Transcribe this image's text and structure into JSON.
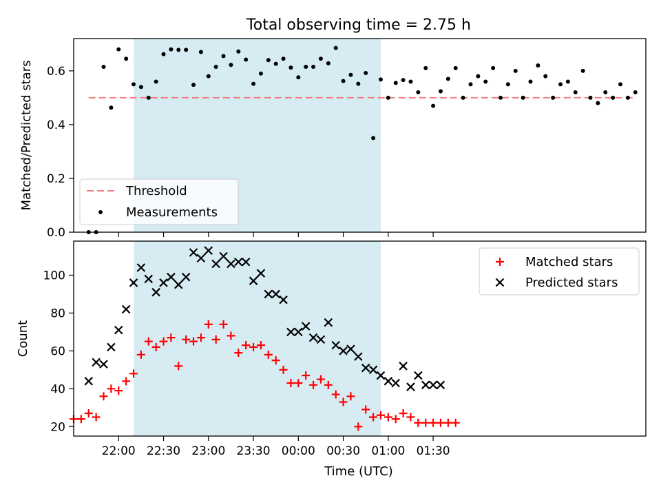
{
  "chart_data": [
    {
      "type": "scatter",
      "title": "Total observing time = 2.75 h",
      "xlabel": "",
      "ylabel": "Matched/Predicted stars",
      "ylim": [
        0,
        0.72
      ],
      "y_ticks": [
        "0.0",
        "0.2",
        "0.4",
        "0.6"
      ],
      "x_range_minutes": [
        1290,
        1672
      ],
      "shaded_interval_minutes": [
        1330,
        1495
      ],
      "threshold": {
        "name": "Threshold",
        "value": 0.5,
        "x": [
          1300,
          1665
        ],
        "color": "#f08080"
      },
      "series": [
        {
          "name": "Measurements",
          "color": "#000000",
          "x": [
            1300,
            1305,
            1310,
            1315,
            1320,
            1325,
            1330,
            1335,
            1340,
            1345,
            1350,
            1355,
            1360,
            1365,
            1370,
            1375,
            1380,
            1385,
            1390,
            1395,
            1400,
            1405,
            1410,
            1415,
            1420,
            1425,
            1430,
            1435,
            1440,
            1445,
            1450,
            1455,
            1460,
            1465,
            1470,
            1475,
            1480,
            1485,
            1490,
            1495,
            1500,
            1505,
            1510,
            1515,
            1520,
            1525,
            1530,
            1535,
            1540,
            1545,
            1550,
            1555,
            1560,
            1565,
            1570,
            1575,
            1580,
            1585,
            1590,
            1595,
            1600,
            1605,
            1610,
            1615,
            1620,
            1625,
            1630,
            1635,
            1640,
            1645,
            1650,
            1655,
            1660,
            1665
          ],
          "y": [
            0.0,
            0.0,
            0.615,
            0.463,
            0.68,
            0.645,
            0.55,
            0.54,
            0.5,
            0.56,
            0.662,
            0.68,
            0.678,
            0.678,
            0.548,
            0.67,
            0.58,
            0.615,
            0.655,
            0.622,
            0.672,
            0.642,
            0.552,
            0.59,
            0.64,
            0.626,
            0.645,
            0.612,
            0.576,
            0.615,
            0.615,
            0.645,
            0.628,
            0.685,
            0.562,
            0.585,
            0.552,
            0.592,
            0.35,
            0.568,
            0.5,
            0.555,
            0.566,
            0.56,
            0.52,
            0.61,
            0.47,
            0.524,
            0.57,
            0.61,
            0.5,
            0.55,
            0.58,
            0.56,
            0.61,
            0.5,
            0.55,
            0.6,
            0.5,
            0.56,
            0.62,
            0.58,
            0.5,
            0.55,
            0.56,
            0.52,
            0.6,
            0.5,
            0.48,
            0.52,
            0.5,
            0.55,
            0.5,
            0.52
          ]
        }
      ]
    },
    {
      "type": "scatter",
      "xlabel": "Time (UTC)",
      "ylabel": "Count",
      "ylim": [
        15,
        118
      ],
      "y_ticks": [
        "20",
        "40",
        "60",
        "80",
        "100"
      ],
      "x_ticks": [
        "22:00",
        "22:30",
        "23:00",
        "23:30",
        "00:00",
        "00:30",
        "01:00",
        "01:30"
      ],
      "x_range_minutes": [
        1290,
        1672
      ],
      "shaded_interval_minutes": [
        1330,
        1495
      ],
      "series": [
        {
          "name": "Matched stars",
          "marker": "plus",
          "color": "#ff0000",
          "x": [
            1290,
            1295,
            1300,
            1305,
            1310,
            1315,
            1320,
            1325,
            1330,
            1335,
            1340,
            1345,
            1350,
            1355,
            1360,
            1365,
            1370,
            1375,
            1380,
            1385,
            1390,
            1395,
            1400,
            1405,
            1410,
            1415,
            1420,
            1425,
            1430,
            1435,
            1440,
            1445,
            1450,
            1455,
            1460,
            1465,
            1470,
            1475,
            1480,
            1485,
            1490,
            1495,
            1500,
            1505,
            1510,
            1515,
            1520,
            1525,
            1530,
            1535,
            1540,
            1545
          ],
          "y": [
            24,
            24,
            27,
            25,
            36,
            40,
            39,
            44,
            48,
            58,
            65,
            62,
            65,
            67,
            52,
            66,
            65,
            67,
            74,
            66,
            74,
            68,
            59,
            63,
            62,
            63,
            58,
            55,
            50,
            43,
            43,
            47,
            42,
            45,
            42,
            37,
            33,
            36,
            20,
            29,
            25,
            26,
            25,
            24,
            27,
            25,
            22,
            22,
            22,
            22,
            22,
            22
          ]
        },
        {
          "name": "Predicted stars",
          "marker": "x",
          "color": "#000000",
          "x": [
            1300,
            1305,
            1310,
            1315,
            1320,
            1325,
            1330,
            1335,
            1340,
            1345,
            1350,
            1355,
            1360,
            1365,
            1370,
            1375,
            1380,
            1385,
            1390,
            1395,
            1400,
            1405,
            1410,
            1415,
            1420,
            1425,
            1430,
            1435,
            1440,
            1445,
            1450,
            1455,
            1460,
            1465,
            1470,
            1475,
            1480,
            1485,
            1490,
            1495,
            1500,
            1505,
            1510,
            1515,
            1520,
            1525,
            1530,
            1535
          ],
          "y": [
            44,
            54,
            53,
            62,
            71,
            82,
            96,
            104,
            98,
            91,
            96,
            99,
            95,
            99,
            112,
            109,
            113,
            106,
            110,
            106,
            107,
            107,
            97,
            101,
            90,
            90,
            87,
            70,
            70,
            73,
            67,
            66,
            75,
            63,
            60,
            61,
            57,
            51,
            50,
            47,
            44,
            43,
            52,
            41,
            47,
            42,
            42,
            42
          ]
        }
      ]
    }
  ]
}
